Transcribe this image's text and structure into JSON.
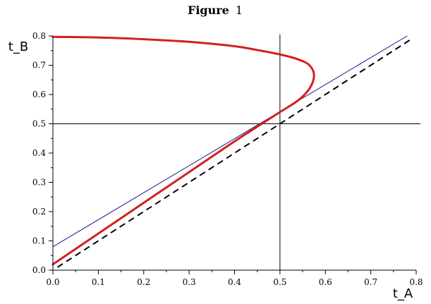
{
  "chart_data": {
    "type": "line",
    "title": "Figure 1",
    "title_bold": "Figure",
    "title_num": "1",
    "xlabel": "t_A",
    "ylabel": "t_B",
    "xlim": [
      0,
      0.8
    ],
    "ylim": [
      0,
      0.8
    ],
    "xticks": [
      "0.0",
      "0.1",
      "0.2",
      "0.3",
      "0.4",
      "0.5",
      "0.6",
      "0.7",
      "0.8"
    ],
    "yticks": [
      "0.0",
      "0.1",
      "0.2",
      "0.3",
      "0.4",
      "0.5",
      "0.6",
      "0.7",
      "0.8"
    ],
    "grid": false,
    "reference_lines": [
      {
        "orientation": "vertical",
        "value": 0.5,
        "color": "#000000"
      },
      {
        "orientation": "horizontal",
        "value": 0.5,
        "color": "#000000"
      }
    ],
    "series": [
      {
        "style": "dashed",
        "color": "#000000",
        "x": [
          0.01,
          0.79
        ],
        "y": [
          0.01,
          0.79
        ]
      },
      {
        "style": "solid-thin",
        "color": "#1a1a8c",
        "x": [
          0.0,
          0.78
        ],
        "y": [
          0.08,
          0.8
        ]
      },
      {
        "style": "solid-thick",
        "color": "#d41f1f",
        "x": [
          0.0,
          0.1,
          0.2,
          0.3,
          0.4,
          0.46,
          0.5,
          0.54,
          0.565,
          0.575,
          0.565,
          0.54,
          0.5,
          0.45,
          0.4,
          0.3,
          0.2,
          0.1,
          0.0
        ],
        "y": [
          0.02,
          0.125,
          0.23,
          0.335,
          0.44,
          0.5,
          0.54,
          0.58,
          0.62,
          0.665,
          0.7,
          0.72,
          0.737,
          0.752,
          0.765,
          0.78,
          0.789,
          0.795,
          0.797
        ]
      }
    ]
  }
}
